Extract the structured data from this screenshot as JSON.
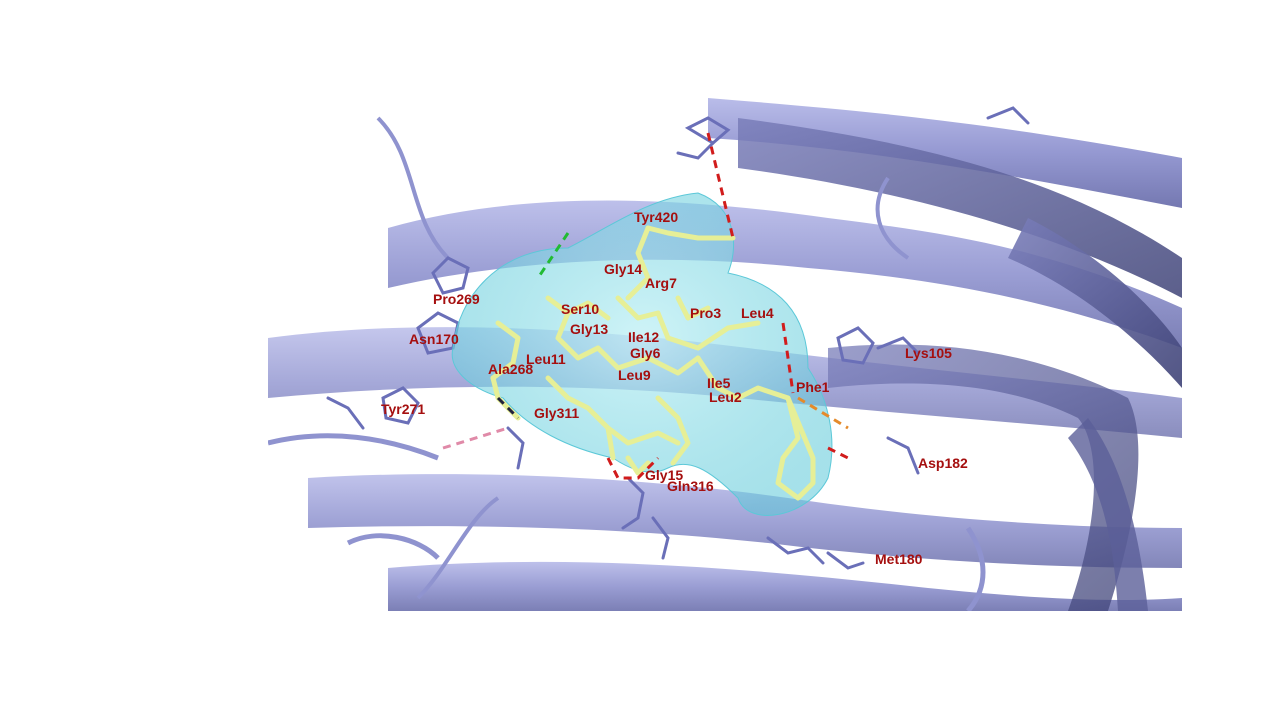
{
  "figure": {
    "colors": {
      "protein_ribbon": "#8f93cf",
      "protein_ribbon_dark": "#5b5f99",
      "ligand_sticks": "#e6ef97",
      "surface": "#7fd9e6",
      "label": "#a50f0f",
      "hbond": "#d11c1c",
      "green_bond": "#22bb33",
      "orange_bond": "#e58a2a",
      "pink_bond": "#e08aa8"
    },
    "labels": [
      "Tyr420",
      "Gly14",
      "Arg7",
      "Pro269",
      "Ser10",
      "Pro3",
      "Leu4",
      "Asn170",
      "Gly13",
      "Ile12",
      "Lys105",
      "Gly6",
      "Leu11",
      "Ala268",
      "Leu9",
      "Ile5",
      "Phe1",
      "Tyr271",
      "Leu2",
      "Gly311",
      "Asp182",
      "Gly15",
      "Gln316",
      "Met180"
    ]
  }
}
